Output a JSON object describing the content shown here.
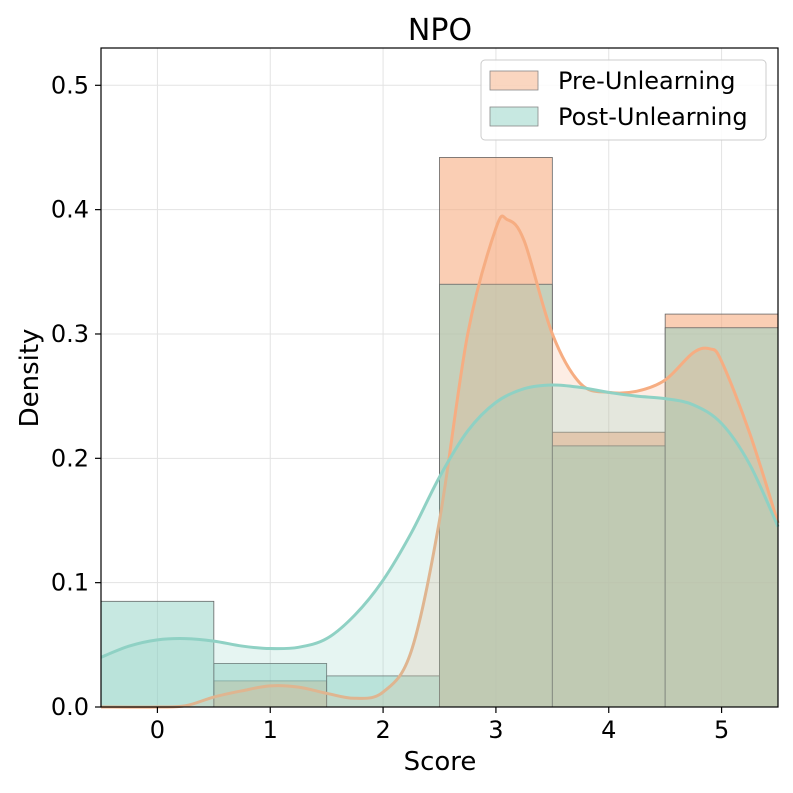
{
  "chart_data": {
    "type": "bar",
    "title": "NPO",
    "xlabel": "Score",
    "ylabel": "Density",
    "xlim": [
      -0.5,
      5.5
    ],
    "ylim": [
      0,
      0.53
    ],
    "x_ticks": [
      0,
      1,
      2,
      3,
      4,
      5
    ],
    "x_tick_labels": [
      "0",
      "1",
      "2",
      "3",
      "4",
      "5"
    ],
    "y_ticks": [
      0.0,
      0.1,
      0.2,
      0.3,
      0.4,
      0.5
    ],
    "y_tick_labels": [
      "0.0",
      "0.1",
      "0.2",
      "0.3",
      "0.4",
      "0.5"
    ],
    "grid": true,
    "legend_position": "top-right",
    "categories": [
      0,
      1,
      2,
      3,
      4,
      5
    ],
    "series": [
      {
        "name": "Pre-Unlearning",
        "color": "#f6ad82",
        "values": [
          0.0,
          0.021,
          0.0,
          0.442,
          0.221,
          0.316
        ],
        "kde": {
          "x": [
            -0.5,
            0.0,
            0.25,
            0.5,
            0.75,
            1.0,
            1.25,
            1.5,
            1.75,
            2.0,
            2.25,
            2.5,
            2.75,
            3.0,
            3.1,
            3.25,
            3.5,
            3.75,
            4.0,
            4.25,
            4.5,
            4.75,
            4.9,
            5.0,
            5.25,
            5.5
          ],
          "y": [
            0.0,
            0.0,
            0.001,
            0.008,
            0.013,
            0.017,
            0.016,
            0.011,
            0.007,
            0.012,
            0.045,
            0.15,
            0.3,
            0.385,
            0.392,
            0.375,
            0.3,
            0.26,
            0.253,
            0.254,
            0.263,
            0.285,
            0.288,
            0.278,
            0.22,
            0.148
          ]
        }
      },
      {
        "name": "Post-Unlearning",
        "color": "#8fd1c4",
        "values": [
          0.085,
          0.035,
          0.025,
          0.34,
          0.21,
          0.305
        ],
        "kde": {
          "x": [
            -0.5,
            -0.25,
            0.0,
            0.25,
            0.5,
            0.75,
            1.0,
            1.25,
            1.5,
            1.75,
            2.0,
            2.25,
            2.5,
            2.75,
            3.0,
            3.25,
            3.5,
            3.75,
            4.0,
            4.25,
            4.5,
            4.75,
            5.0,
            5.25,
            5.5
          ],
          "y": [
            0.04,
            0.049,
            0.054,
            0.055,
            0.053,
            0.049,
            0.047,
            0.048,
            0.055,
            0.074,
            0.102,
            0.14,
            0.185,
            0.222,
            0.245,
            0.256,
            0.259,
            0.257,
            0.253,
            0.25,
            0.248,
            0.243,
            0.228,
            0.195,
            0.145
          ]
        }
      }
    ]
  }
}
